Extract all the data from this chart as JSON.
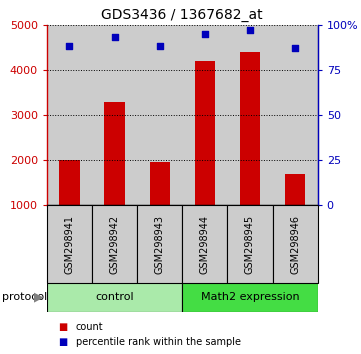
{
  "title": "GDS3436 / 1367682_at",
  "samples": [
    "GSM298941",
    "GSM298942",
    "GSM298943",
    "GSM298944",
    "GSM298945",
    "GSM298946"
  ],
  "counts": [
    2000,
    3300,
    1950,
    4200,
    4400,
    1700
  ],
  "percentile_ranks": [
    88,
    93,
    88,
    95,
    97,
    87
  ],
  "groups": [
    {
      "label": "control",
      "indices": [
        0,
        1,
        2
      ],
      "color": "#AAEAAA"
    },
    {
      "label": "Math2 expression",
      "indices": [
        3,
        4,
        5
      ],
      "color": "#44DD44"
    }
  ],
  "bar_color": "#CC0000",
  "dot_color": "#0000BB",
  "ylim_left": [
    1000,
    5000
  ],
  "ylim_right": [
    0,
    100
  ],
  "yticks_left": [
    1000,
    2000,
    3000,
    4000,
    5000
  ],
  "yticks_right": [
    0,
    25,
    50,
    75,
    100
  ],
  "yticklabels_right": [
    "0",
    "25",
    "50",
    "75",
    "100%"
  ],
  "background_color": "#FFFFFF",
  "bar_bottom": 1000,
  "bar_width": 0.45,
  "sample_col_color": "#CCCCCC",
  "legend_count_label": "count",
  "legend_pct_label": "percentile rank within the sample",
  "protocol_label": "protocol"
}
